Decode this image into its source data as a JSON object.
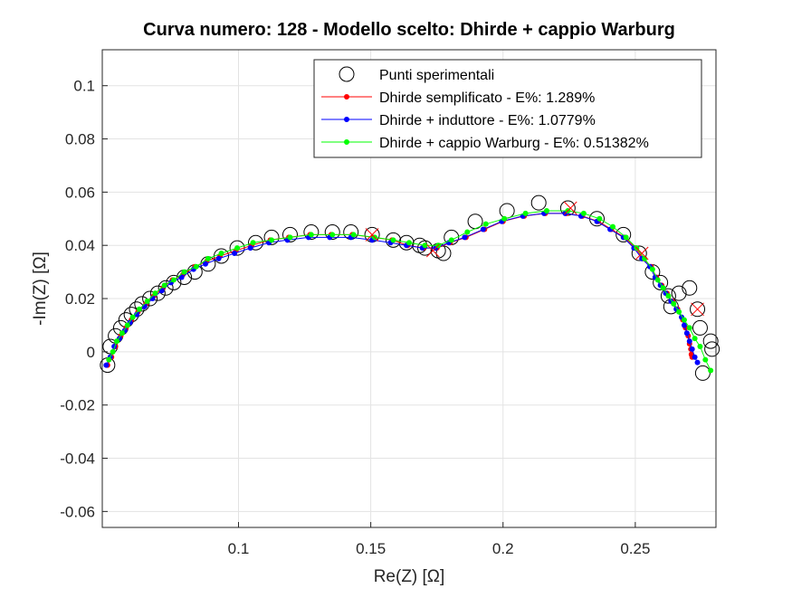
{
  "chart_data": {
    "type": "scatter",
    "title": "Curva numero: 128 - Modello scelto: Dhirde + cappio Warburg",
    "xlabel": "Re(Z) [Ω]",
    "ylabel": "-Im(Z) [Ω]",
    "xlim": [
      0.0485,
      0.2805
    ],
    "ylim": [
      -0.066,
      0.1135
    ],
    "xticks": [
      0.1,
      0.15,
      0.2,
      0.25
    ],
    "xtick_labels": [
      "0.1",
      "0.15",
      "0.2",
      "0.25"
    ],
    "yticks": [
      -0.06,
      -0.04,
      -0.02,
      0,
      0.02,
      0.04,
      0.06,
      0.08,
      0.1
    ],
    "ytick_labels": [
      "-0.06",
      "-0.04",
      "-0.02",
      "0",
      "0.02",
      "0.04",
      "0.06",
      "0.08",
      "0.1"
    ],
    "grid": true,
    "legend_position": "top-right",
    "series": [
      {
        "name": "Punti sperimentali",
        "kind": "markers",
        "marker": "circle",
        "color": "#000000",
        "x": [
          0.2785,
          0.279,
          0.2755,
          0.2745,
          0.2735,
          0.2705,
          0.2665,
          0.2635,
          0.2625,
          0.2595,
          0.2565,
          0.2515,
          0.2455,
          0.2355,
          0.2245,
          0.2135,
          0.2015,
          0.1895,
          0.1805,
          0.1775,
          0.1755,
          0.1705,
          0.1685,
          0.1635,
          0.1585,
          0.1505,
          0.1425,
          0.1355,
          0.1275,
          0.1195,
          0.1125,
          0.1065,
          0.0995,
          0.0935,
          0.0885,
          0.0835,
          0.0795,
          0.0755,
          0.0725,
          0.0695,
          0.0665,
          0.0635,
          0.0615,
          0.0595,
          0.0575,
          0.0555,
          0.0535,
          0.0515,
          0.0505
        ],
        "y": [
          0.004,
          0.001,
          -0.008,
          0.009,
          0.016,
          0.024,
          0.022,
          0.017,
          0.021,
          0.026,
          0.03,
          0.037,
          0.044,
          0.05,
          0.054,
          0.056,
          0.053,
          0.049,
          0.043,
          0.037,
          0.038,
          0.039,
          0.04,
          0.041,
          0.042,
          0.044,
          0.045,
          0.045,
          0.045,
          0.044,
          0.043,
          0.041,
          0.039,
          0.036,
          0.033,
          0.03,
          0.028,
          0.026,
          0.024,
          0.022,
          0.02,
          0.018,
          0.016,
          0.014,
          0.012,
          0.009,
          0.006,
          0.002,
          -0.005
        ]
      },
      {
        "name": "Dhirde semplificato - E%: 1.289%",
        "kind": "line-markers",
        "color": "#ff0000",
        "x": [
          0.0505,
          0.052,
          0.0535,
          0.0555,
          0.0575,
          0.0595,
          0.062,
          0.065,
          0.068,
          0.0715,
          0.075,
          0.079,
          0.0835,
          0.088,
          0.093,
          0.099,
          0.105,
          0.112,
          0.119,
          0.127,
          0.135,
          0.143,
          0.151,
          0.158,
          0.164,
          0.17,
          0.175,
          0.18,
          0.186,
          0.193,
          0.2,
          0.208,
          0.216,
          0.224,
          0.23,
          0.236,
          0.241,
          0.246,
          0.25,
          0.253,
          0.256,
          0.258,
          0.26,
          0.262,
          0.264,
          0.266,
          0.268,
          0.269,
          0.27,
          0.2705,
          0.271,
          0.2712,
          0.2715
        ],
        "y": [
          -0.005,
          -0.002,
          0.002,
          0.006,
          0.009,
          0.012,
          0.015,
          0.018,
          0.021,
          0.024,
          0.027,
          0.029,
          0.032,
          0.034,
          0.036,
          0.038,
          0.04,
          0.042,
          0.043,
          0.044,
          0.044,
          0.044,
          0.043,
          0.042,
          0.04,
          0.039,
          0.039,
          0.041,
          0.043,
          0.046,
          0.049,
          0.051,
          0.052,
          0.052,
          0.051,
          0.049,
          0.046,
          0.043,
          0.039,
          0.035,
          0.032,
          0.028,
          0.025,
          0.022,
          0.019,
          0.016,
          0.012,
          0.009,
          0.006,
          0.003,
          0.001,
          -0.001,
          -0.002
        ]
      },
      {
        "name": "Dhirde + induttore - E%: 1.0779%",
        "kind": "line-markers",
        "color": "#0000ff",
        "x": [
          0.05,
          0.0515,
          0.053,
          0.055,
          0.057,
          0.059,
          0.0615,
          0.0645,
          0.0675,
          0.071,
          0.0745,
          0.0785,
          0.083,
          0.0875,
          0.0925,
          0.0985,
          0.1045,
          0.1115,
          0.1185,
          0.1265,
          0.1345,
          0.1425,
          0.1505,
          0.1575,
          0.1635,
          0.1695,
          0.1745,
          0.1795,
          0.1855,
          0.1925,
          0.1995,
          0.2075,
          0.2155,
          0.2235,
          0.2295,
          0.2355,
          0.2405,
          0.2455,
          0.2495,
          0.2525,
          0.2555,
          0.2575,
          0.2595,
          0.2615,
          0.2635,
          0.2655,
          0.2675,
          0.2685,
          0.2695,
          0.2705,
          0.2715,
          0.2725,
          0.2735
        ],
        "y": [
          -0.005,
          -0.002,
          0.002,
          0.005,
          0.008,
          0.011,
          0.014,
          0.017,
          0.02,
          0.023,
          0.026,
          0.028,
          0.031,
          0.033,
          0.035,
          0.037,
          0.039,
          0.041,
          0.042,
          0.043,
          0.043,
          0.043,
          0.042,
          0.041,
          0.04,
          0.039,
          0.039,
          0.041,
          0.043,
          0.046,
          0.049,
          0.051,
          0.052,
          0.052,
          0.051,
          0.049,
          0.046,
          0.043,
          0.039,
          0.035,
          0.032,
          0.028,
          0.025,
          0.022,
          0.019,
          0.016,
          0.013,
          0.01,
          0.007,
          0.004,
          0.001,
          -0.002,
          -0.004
        ]
      },
      {
        "name": "Dhirde + cappio Warburg - E%: 0.51382%",
        "kind": "line-markers",
        "color": "#00ff00",
        "x": [
          0.051,
          0.0525,
          0.054,
          0.056,
          0.058,
          0.06,
          0.0625,
          0.0655,
          0.0685,
          0.072,
          0.0755,
          0.0795,
          0.084,
          0.0885,
          0.0935,
          0.0995,
          0.1055,
          0.1125,
          0.1195,
          0.1275,
          0.1355,
          0.1435,
          0.1515,
          0.1585,
          0.1645,
          0.1705,
          0.1755,
          0.1805,
          0.1865,
          0.1935,
          0.2005,
          0.2085,
          0.2165,
          0.2245,
          0.2305,
          0.2365,
          0.2415,
          0.2465,
          0.2505,
          0.2535,
          0.2565,
          0.2585,
          0.2605,
          0.2625,
          0.2645,
          0.2665,
          0.2685,
          0.2705,
          0.2725,
          0.2745,
          0.2765,
          0.2785
        ],
        "y": [
          -0.003,
          0.0,
          0.004,
          0.007,
          0.01,
          0.013,
          0.016,
          0.019,
          0.022,
          0.025,
          0.027,
          0.03,
          0.032,
          0.035,
          0.037,
          0.039,
          0.041,
          0.042,
          0.043,
          0.044,
          0.044,
          0.044,
          0.043,
          0.042,
          0.041,
          0.04,
          0.04,
          0.042,
          0.045,
          0.048,
          0.05,
          0.052,
          0.053,
          0.053,
          0.052,
          0.05,
          0.047,
          0.043,
          0.039,
          0.035,
          0.031,
          0.027,
          0.024,
          0.021,
          0.018,
          0.015,
          0.012,
          0.009,
          0.005,
          0.002,
          -0.003,
          -0.007
        ]
      },
      {
        "name": "",
        "kind": "cross-markers",
        "color": "#ff0000",
        "x": [
          0.2735,
          0.2525,
          0.2255,
          0.1735,
          0.1505
        ],
        "y": [
          0.016,
          0.037,
          0.054,
          0.038,
          0.044
        ]
      }
    ]
  }
}
